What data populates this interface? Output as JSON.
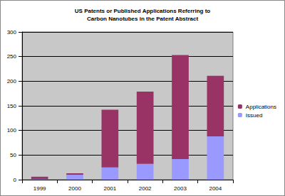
{
  "chart_data": {
    "type": "bar",
    "title": "US Patents or Published Applications Referring to\nCarbon Nanotubes in the Patent Abstract",
    "categories": [
      "1999",
      "2000",
      "2001",
      "2002",
      "2003",
      "2004"
    ],
    "series": [
      {
        "name": "Issued",
        "color": "#9999ff",
        "values": [
          1,
          10,
          25,
          32,
          42,
          88
        ]
      },
      {
        "name": "Applications",
        "color": "#993366",
        "values": [
          5,
          3,
          117,
          147,
          211,
          123
        ]
      }
    ],
    "ylim": [
      0,
      300
    ],
    "yticks": [
      0,
      50,
      100,
      150,
      200,
      250,
      300
    ],
    "stacked": true,
    "grid": true,
    "legend": "right"
  }
}
